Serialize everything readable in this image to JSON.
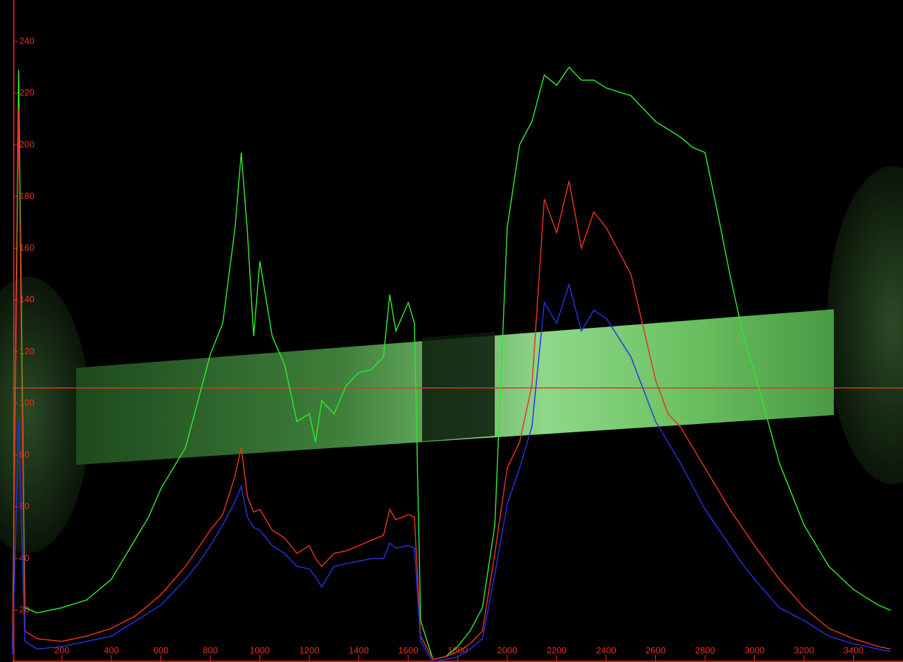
{
  "chart_data": {
    "type": "line",
    "x": [
      0,
      25,
      50,
      100,
      200,
      300,
      400,
      500,
      550,
      600,
      700,
      750,
      800,
      850,
      900,
      925,
      950,
      975,
      1000,
      1050,
      1100,
      1150,
      1200,
      1225,
      1250,
      1300,
      1350,
      1400,
      1450,
      1500,
      1525,
      1550,
      1600,
      1625,
      1650,
      1700,
      1750,
      1800,
      1850,
      1900,
      1950,
      2000,
      2050,
      2100,
      2150,
      2200,
      2250,
      2300,
      2350,
      2400,
      2500,
      2600,
      2650,
      2700,
      2750,
      2800,
      2850,
      2900,
      2950,
      3000,
      3100,
      3200,
      3300,
      3400,
      3500,
      3550
    ],
    "series": [
      {
        "color": "#2ee82e",
        "values": [
          5,
          229,
          21,
          19,
          21,
          24,
          32,
          48,
          56,
          67,
          83,
          101,
          119,
          131,
          168,
          197,
          166,
          126,
          155,
          126,
          115,
          93,
          96,
          85,
          101,
          96,
          107,
          112,
          113,
          118,
          142,
          128,
          139,
          131,
          16,
          1,
          2,
          6,
          12,
          21,
          53,
          168,
          200,
          209,
          227,
          223,
          230,
          225,
          225,
          222,
          219,
          209,
          206,
          203,
          199,
          197,
          174,
          150,
          128,
          112,
          77,
          53,
          37,
          28,
          22,
          20
        ]
      },
      {
        "color": "#e8321e",
        "values": [
          6,
          214,
          12,
          9,
          8,
          10,
          13,
          18,
          22,
          26,
          37,
          44,
          51,
          57,
          72,
          83,
          64,
          58,
          59,
          51,
          48,
          42,
          45,
          40,
          37,
          42,
          43,
          45,
          47,
          49,
          59,
          55,
          57,
          56,
          10,
          1,
          2,
          4,
          7,
          12,
          42,
          75,
          85,
          107,
          179,
          166,
          186,
          160,
          174,
          168,
          150,
          109,
          96,
          91,
          83,
          75,
          67,
          59,
          52,
          45,
          32,
          21,
          13,
          9,
          6,
          5
        ]
      },
      {
        "color": "#2830e0",
        "values": [
          3,
          93,
          8,
          5,
          6,
          8,
          10,
          16,
          19,
          22,
          32,
          38,
          45,
          53,
          62,
          68,
          56,
          52,
          51,
          45,
          42,
          37,
          36,
          33,
          29,
          37,
          38,
          39,
          40,
          40,
          46,
          44,
          45,
          44,
          8,
          0,
          1,
          2,
          5,
          9,
          34,
          61,
          75,
          91,
          139,
          131,
          146,
          128,
          136,
          133,
          118,
          93,
          85,
          77,
          68,
          59,
          52,
          45,
          38,
          32,
          21,
          16,
          10,
          7,
          5,
          4
        ]
      }
    ],
    "xlim": [
      0,
      3600
    ],
    "ylim": [
      0,
      256
    ],
    "xticks": [
      200,
      400,
      600,
      800,
      1000,
      1200,
      1400,
      1600,
      1800,
      2000,
      2200,
      2400,
      2600,
      2800,
      3000,
      3200,
      3400
    ],
    "yticks": [
      20,
      40,
      60,
      80,
      100,
      120,
      140,
      160,
      180,
      200,
      220,
      240
    ],
    "axis_color": "#e8321e",
    "cursor_y": 106
  }
}
